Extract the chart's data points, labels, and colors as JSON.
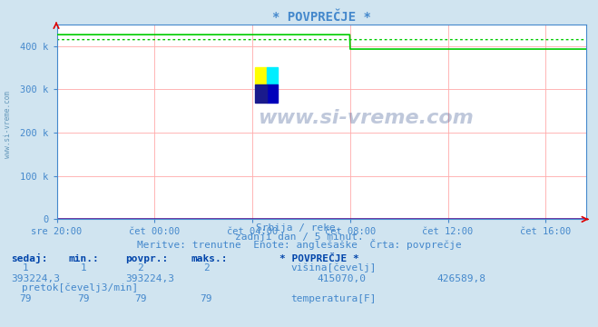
{
  "title": "* POVPREČJE *",
  "bg_color": "#d0e4f0",
  "plot_bg_color": "#ffffff",
  "grid_color": "#ffaaaa",
  "line_color_pretok": "#00cc00",
  "line_color_avg": "#00cc00",
  "line_color_temp": "#dd0000",
  "line_color_visina": "#0000cc",
  "text_color": "#4488cc",
  "ytick_labels": [
    "0",
    "100 k",
    "200 k",
    "300 k",
    "400 k"
  ],
  "ytick_values": [
    0,
    100000,
    200000,
    300000,
    400000
  ],
  "ylim": [
    0,
    450000
  ],
  "xtick_labels": [
    "sre 20:00",
    "čet 00:00",
    "čet 04:00",
    "čet 08:00",
    "čet 12:00",
    "čet 16:00"
  ],
  "xtick_positions": [
    0,
    240,
    480,
    720,
    960,
    1200
  ],
  "total_points": 1300,
  "pretok_high": 426589.8,
  "pretok_low": 393224.3,
  "pretok_drop_point": 720,
  "avg_value": 415070.0,
  "temp_value": 79,
  "visina_value": 2,
  "subtitle1": "Srbija / reke.",
  "subtitle2": "zadnji dan / 5 minut.",
  "subtitle3": "Meritve: trenutne  Enote: anglešaške  Črta: povprečje",
  "col_headers": [
    "sedaj:",
    "min.:",
    "povpr.:",
    "maks.:"
  ],
  "section_title": "* POVPREČJE *",
  "visina_label": "višina[čevelj]",
  "pretok_label": "pretok[čevelj3/min]",
  "temp_label": "temperatura[F]",
  "watermark": "www.si-vreme.com",
  "left_watermark": "www.si-vreme.com"
}
